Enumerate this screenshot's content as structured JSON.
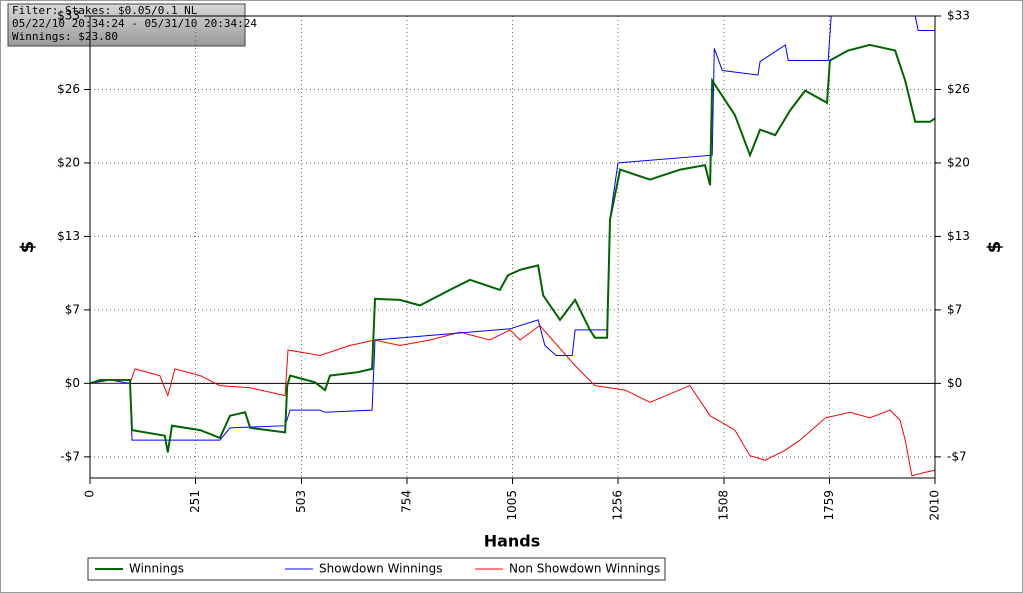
{
  "chart_data": {
    "type": "line",
    "annotations": [
      "Filter: Stakes: $0.05/0.1 NL",
      "05/22/10 20:34:24 - 05/31/10 20:34:24",
      "Winnings: $23.80"
    ],
    "xlabel": "Hands",
    "ylabel": "$",
    "y2label": "$",
    "xlim": [
      0,
      2010
    ],
    "xticks": [
      0,
      251,
      503,
      754,
      1005,
      1256,
      1508,
      1759,
      2010
    ],
    "ylim": [
      -8.5,
      33
    ],
    "yticks": [
      {
        "value": -6.6,
        "label": "-$7"
      },
      {
        "value": 0,
        "label": "$0"
      },
      {
        "value": 6.6,
        "label": "$7"
      },
      {
        "value": 13.2,
        "label": "$13"
      },
      {
        "value": 19.8,
        "label": "$20"
      },
      {
        "value": 26.4,
        "label": "$26"
      },
      {
        "value": 33,
        "label": "$33"
      }
    ],
    "y2lim": [
      -8.5,
      33
    ],
    "y2ticks": [
      {
        "value": -6.6,
        "label": "-$7"
      },
      {
        "value": 0,
        "label": "$0"
      },
      {
        "value": 6.6,
        "label": "$7"
      },
      {
        "value": 13.2,
        "label": "$13"
      },
      {
        "value": 19.8,
        "label": "$20"
      },
      {
        "value": 26.4,
        "label": "$26"
      },
      {
        "value": 33,
        "label": "$33"
      }
    ],
    "grid": true,
    "series": [
      {
        "name": "Winnings",
        "color": "#006400",
        "x": [
          0,
          24,
          95,
          100,
          178,
          185,
          195,
          262,
          309,
          333,
          369,
          381,
          464,
          469,
          476,
          535,
          559,
          571,
          637,
          671,
          678,
          737,
          785,
          856,
          904,
          975,
          994,
          1023,
          1066,
          1078,
          1118,
          1154,
          1189,
          1201,
          1230,
          1237,
          1261,
          1332,
          1404,
          1463,
          1475,
          1480,
          1534,
          1570,
          1594,
          1630,
          1665,
          1701,
          1753,
          1760,
          1803,
          1855,
          1915,
          1939,
          1963,
          1998,
          2010
        ],
        "values": [
          0,
          0.3,
          0.3,
          -4.2,
          -4.7,
          -6.2,
          -3.8,
          -4.2,
          -4.9,
          -2.9,
          -2.6,
          -4.0,
          -4.4,
          -0.2,
          0.7,
          0.1,
          -0.6,
          0.7,
          1.0,
          1.3,
          7.6,
          7.5,
          7.0,
          8.4,
          9.3,
          8.4,
          9.7,
          10.2,
          10.6,
          7.9,
          5.7,
          7.5,
          4.8,
          4.1,
          4.1,
          14.7,
          19.2,
          18.3,
          19.2,
          19.6,
          17.8,
          27.2,
          24.1,
          20.5,
          22.8,
          22.3,
          24.5,
          26.3,
          25.2,
          29.0,
          29.9,
          30.4,
          29.9,
          27.2,
          23.5,
          23.5,
          23.8
        ]
      },
      {
        "name": "Showdown Winnings",
        "color": "#0000ff",
        "x": [
          0,
          48,
          95,
          100,
          309,
          333,
          464,
          476,
          547,
          559,
          671,
          678,
          999,
          1066,
          1082,
          1109,
          1147,
          1154,
          1230,
          1237,
          1256,
          1480,
          1485,
          1504,
          1589,
          1594,
          1654,
          1661,
          1756,
          1763,
          1963,
          1970,
          2010
        ],
        "values": [
          0,
          0.3,
          0,
          -5.1,
          -5.1,
          -4.0,
          -3.8,
          -2.4,
          -2.4,
          -2.6,
          -2.4,
          3.9,
          4.9,
          5.7,
          3.4,
          2.5,
          2.5,
          4.8,
          4.8,
          14.8,
          19.8,
          20.5,
          30.1,
          28.1,
          27.7,
          28.9,
          30.4,
          29.0,
          29.0,
          33.0,
          33.0,
          31.7,
          31.7
        ]
      },
      {
        "name": "Non Showdown Winnings",
        "color": "#ff0000",
        "x": [
          0,
          95,
          107,
          166,
          185,
          202,
          262,
          309,
          381,
          464,
          471,
          547,
          618,
          678,
          737,
          809,
          880,
          951,
          999,
          1023,
          1070,
          1154,
          1201,
          1273,
          1332,
          1427,
          1475,
          1534,
          1570,
          1606,
          1654,
          1689,
          1749,
          1808,
          1855,
          1903,
          1927,
          1939,
          1955,
          1986,
          2010
        ],
        "values": [
          0,
          0,
          1.3,
          0.7,
          -1.1,
          1.3,
          0.7,
          -0.2,
          -0.4,
          -1.1,
          3.0,
          2.5,
          3.4,
          3.9,
          3.4,
          3.9,
          4.6,
          3.9,
          4.8,
          3.9,
          5.2,
          1.6,
          -0.2,
          -0.6,
          -1.7,
          -0.2,
          -2.9,
          -4.2,
          -6.5,
          -6.9,
          -6.0,
          -5.1,
          -3.1,
          -2.6,
          -3.1,
          -2.4,
          -3.3,
          -5.1,
          -8.3,
          -8.0,
          -7.8
        ]
      }
    ]
  }
}
